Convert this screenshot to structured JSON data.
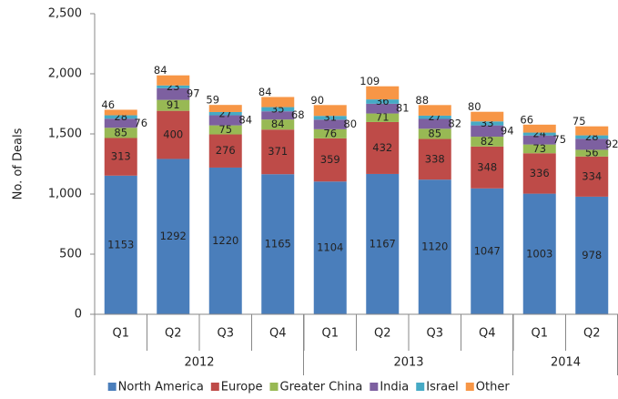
{
  "chart_data": {
    "type": "stacked_bar",
    "y_label": "No. of Deals",
    "categories": [
      "Q1",
      "Q2",
      "Q3",
      "Q4",
      "Q1",
      "Q2",
      "Q3",
      "Q4",
      "Q1",
      "Q2"
    ],
    "groups": [
      {
        "name": "2012",
        "size": 4
      },
      {
        "name": "2013",
        "size": 4
      },
      {
        "name": "2014",
        "size": 2
      }
    ],
    "series": [
      {
        "name": "North America",
        "color": "#4a7ebb",
        "values": [
          1153,
          1292,
          1220,
          1165,
          1104,
          1167,
          1120,
          1047,
          1003,
          978
        ]
      },
      {
        "name": "Europe",
        "color": "#be4b48",
        "values": [
          313,
          400,
          276,
          371,
          359,
          432,
          338,
          348,
          336,
          334
        ]
      },
      {
        "name": "Greater China",
        "color": "#98b954",
        "values": [
          85,
          91,
          75,
          84,
          76,
          71,
          85,
          82,
          73,
          56
        ]
      },
      {
        "name": "India",
        "color": "#7d60a0",
        "values": [
          76,
          97,
          84,
          68,
          80,
          81,
          82,
          94,
          75,
          92
        ]
      },
      {
        "name": "Israel",
        "color": "#46aac5",
        "values": [
          28,
          23,
          27,
          35,
          31,
          36,
          27,
          33,
          24,
          28
        ]
      },
      {
        "name": "Other",
        "color": "#f79646",
        "values": [
          46,
          84,
          59,
          84,
          90,
          109,
          88,
          80,
          66,
          75
        ]
      }
    ],
    "ylim": [
      0,
      2500
    ],
    "yticks": [
      0,
      {
        "value": 500,
        "label": "500"
      },
      {
        "value": 1000,
        "label": "1,000"
      },
      {
        "value": 1500,
        "label": "1,500"
      },
      {
        "value": 2000,
        "label": "2,000"
      },
      {
        "value": 2500,
        "label": "2,500"
      }
    ],
    "legend": "bottom"
  }
}
